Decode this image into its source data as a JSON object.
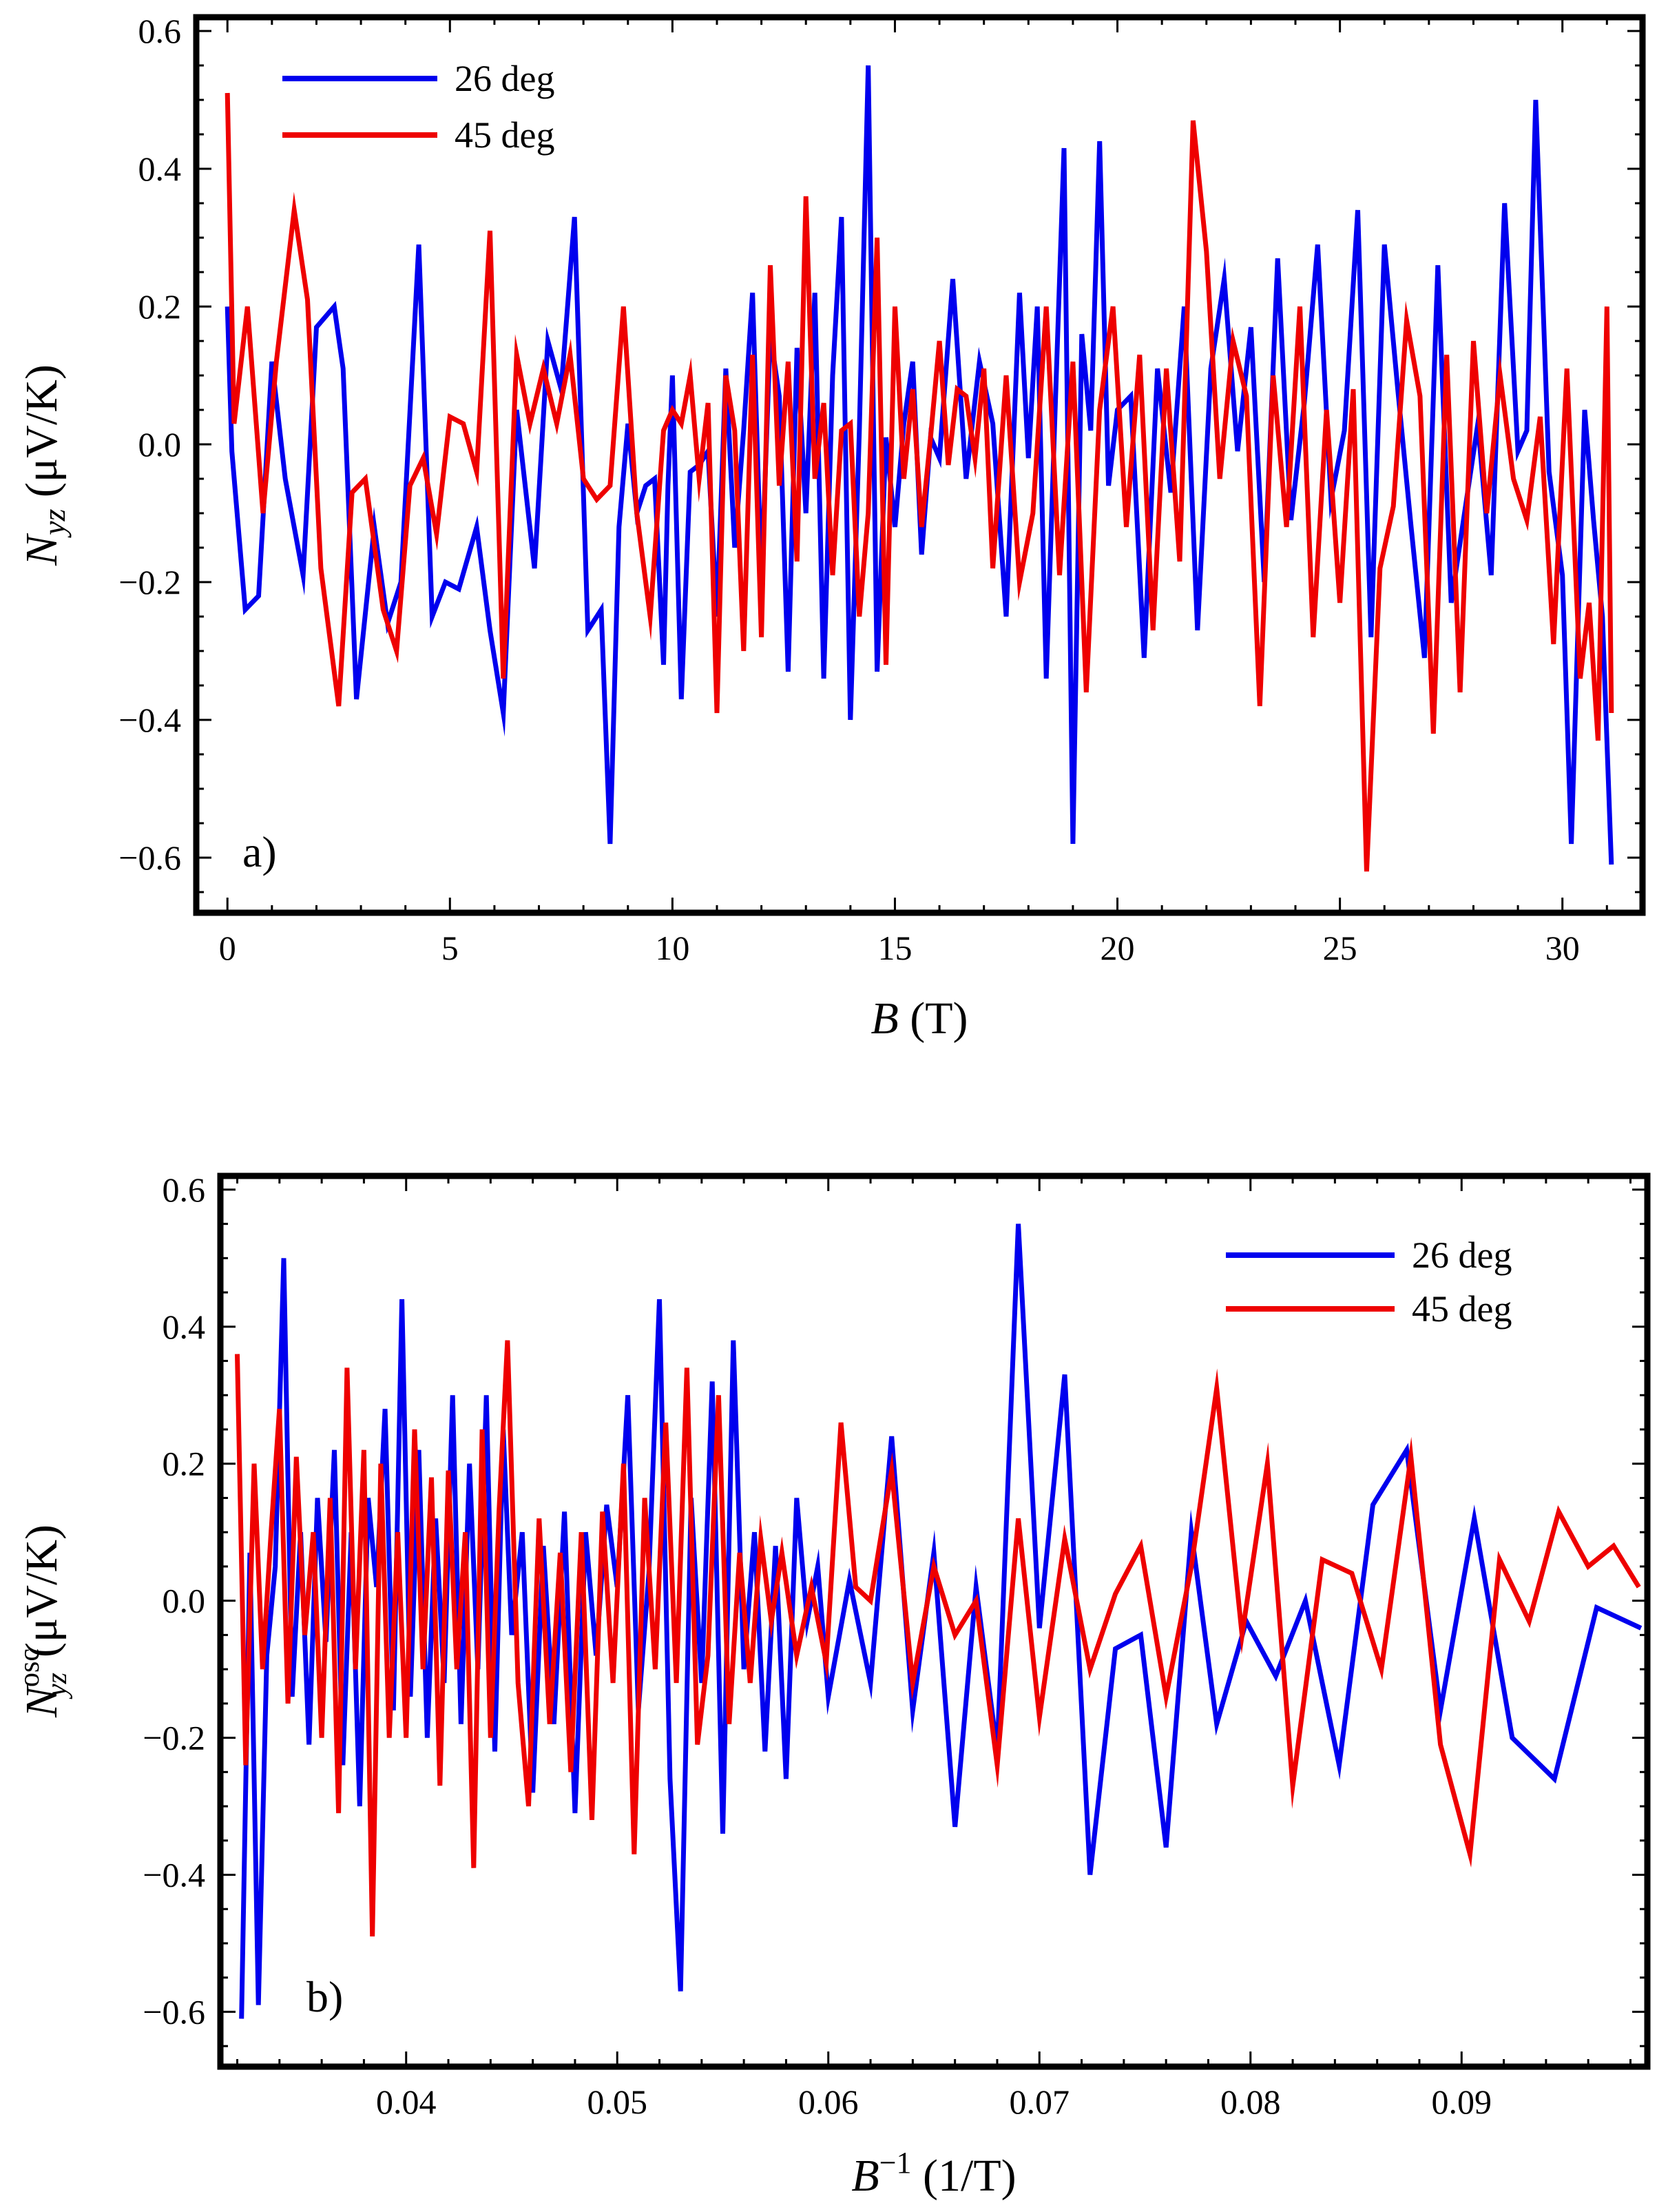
{
  "chart_data": [
    {
      "type": "line",
      "panel_label": "a)",
      "xlabel_main": "B",
      "xlabel_unit": " (T)",
      "ylabel_main": "N",
      "ylabel_sub": "yz",
      "ylabel_unit": " (μV/K)",
      "xlim": [
        -0.7,
        31.8
      ],
      "ylim": [
        -0.68,
        0.62
      ],
      "xticks": [
        0,
        5,
        10,
        15,
        20,
        25,
        30
      ],
      "xtick_labels": [
        "0",
        "5",
        "10",
        "15",
        "20",
        "25",
        "30"
      ],
      "yticks": [
        -0.6,
        -0.4,
        -0.2,
        0.0,
        0.2,
        0.4,
        0.6
      ],
      "ytick_labels": [
        "−0.6",
        "−0.4",
        "−0.2",
        "0.0",
        "0.2",
        "0.4",
        "0.6"
      ],
      "legend_position": "top-left",
      "series": [
        {
          "name": "26 deg",
          "color": "#0000ee",
          "x": [
            0,
            0.1,
            0.4,
            0.7,
            1.0,
            1.3,
            1.7,
            2.0,
            2.4,
            2.6,
            2.9,
            3.3,
            3.6,
            3.9,
            4.3,
            4.6,
            4.9,
            5.2,
            5.6,
            5.9,
            6.2,
            6.5,
            6.9,
            7.2,
            7.5,
            7.8,
            8.1,
            8.4,
            8.6,
            8.8,
            9.0,
            9.2,
            9.4,
            9.6,
            9.8,
            9.9,
            10.0,
            10.2,
            10.4,
            10.6,
            10.8,
            11.0,
            11.2,
            11.4,
            11.6,
            11.8,
            12.0,
            12.2,
            12.4,
            12.6,
            12.8,
            13.0,
            13.2,
            13.4,
            13.6,
            13.8,
            14.0,
            14.2,
            14.4,
            14.6,
            14.8,
            15.0,
            15.2,
            15.4,
            15.6,
            15.8,
            16.0,
            16.3,
            16.6,
            16.9,
            17.2,
            17.5,
            17.8,
            18.0,
            18.2,
            18.4,
            18.6,
            18.8,
            19.0,
            19.2,
            19.4,
            19.6,
            19.8,
            20.0,
            20.3,
            20.6,
            20.9,
            21.2,
            21.5,
            21.8,
            22.1,
            22.4,
            22.7,
            23.0,
            23.3,
            23.6,
            23.9,
            24.2,
            24.5,
            24.8,
            25.1,
            25.4,
            25.7,
            26.0,
            26.3,
            26.6,
            26.9,
            27.2,
            27.5,
            27.8,
            28.1,
            28.4,
            28.7,
            29.0,
            29.2,
            29.4,
            29.7,
            30.0,
            30.2,
            30.5,
            30.7,
            30.9,
            31.1
          ],
          "y": [
            0.2,
            -0.01,
            -0.24,
            -0.22,
            0.12,
            -0.05,
            -0.19,
            0.17,
            0.2,
            0.11,
            -0.37,
            -0.12,
            -0.26,
            -0.2,
            0.29,
            -0.25,
            -0.2,
            -0.21,
            -0.12,
            -0.27,
            -0.39,
            0.05,
            -0.18,
            0.15,
            0.08,
            0.33,
            -0.27,
            -0.24,
            -0.58,
            -0.12,
            0.03,
            -0.1,
            -0.06,
            -0.05,
            -0.32,
            -0.06,
            0.1,
            -0.37,
            -0.04,
            -0.03,
            -0.01,
            -0.25,
            0.11,
            -0.15,
            0.02,
            0.22,
            -0.2,
            0.16,
            0.07,
            -0.33,
            0.14,
            -0.1,
            0.22,
            -0.34,
            0.1,
            0.33,
            -0.4,
            0.02,
            0.55,
            -0.33,
            0.01,
            -0.12,
            0.03,
            0.12,
            -0.16,
            0.01,
            -0.02,
            0.24,
            -0.05,
            0.12,
            0.03,
            -0.25,
            0.22,
            -0.02,
            0.2,
            -0.34,
            0.05,
            0.43,
            -0.58,
            0.16,
            0.02,
            0.44,
            -0.06,
            0.05,
            0.07,
            -0.31,
            0.11,
            -0.07,
            0.2,
            -0.27,
            0.11,
            0.24,
            -0.01,
            0.17,
            -0.2,
            0.27,
            -0.11,
            0.06,
            0.29,
            -0.08,
            0.02,
            0.34,
            -0.28,
            0.29,
            0.08,
            -0.12,
            -0.31,
            0.26,
            -0.23,
            -0.1,
            0.03,
            -0.19,
            0.35,
            -0.01,
            0.02,
            0.5,
            -0.04,
            -0.19,
            -0.58,
            0.05,
            -0.11,
            -0.25,
            -0.61
          ]
        },
        {
          "name": "45 deg",
          "color": "#ee0000",
          "x": [
            0,
            0.15,
            0.45,
            0.8,
            1.1,
            1.5,
            1.8,
            2.1,
            2.5,
            2.8,
            3.1,
            3.5,
            3.8,
            4.1,
            4.4,
            4.7,
            5.0,
            5.3,
            5.6,
            5.9,
            6.2,
            6.5,
            6.8,
            7.1,
            7.4,
            7.7,
            8.0,
            8.3,
            8.6,
            8.9,
            9.2,
            9.5,
            9.8,
            10.0,
            10.2,
            10.4,
            10.6,
            10.8,
            11.0,
            11.2,
            11.4,
            11.6,
            11.8,
            12.0,
            12.2,
            12.4,
            12.6,
            12.8,
            13.0,
            13.2,
            13.4,
            13.6,
            13.8,
            14.0,
            14.2,
            14.4,
            14.6,
            14.8,
            15.0,
            15.2,
            15.4,
            15.6,
            15.8,
            16.0,
            16.2,
            16.4,
            16.6,
            16.8,
            17.0,
            17.2,
            17.5,
            17.8,
            18.1,
            18.4,
            18.7,
            19.0,
            19.3,
            19.6,
            19.9,
            20.2,
            20.5,
            20.8,
            21.1,
            21.4,
            21.7,
            22.0,
            22.3,
            22.6,
            22.9,
            23.2,
            23.5,
            23.8,
            24.1,
            24.4,
            24.7,
            25.0,
            25.3,
            25.6,
            25.9,
            26.2,
            26.5,
            26.8,
            27.1,
            27.4,
            27.7,
            28.0,
            28.3,
            28.6,
            28.9,
            29.2,
            29.5,
            29.8,
            30.1,
            30.4,
            30.6,
            30.8,
            31.0,
            31.1
          ],
          "y": [
            0.51,
            0.03,
            0.2,
            -0.1,
            0.12,
            0.34,
            0.21,
            -0.18,
            -0.38,
            -0.07,
            -0.05,
            -0.24,
            -0.3,
            -0.06,
            -0.02,
            -0.13,
            0.04,
            0.03,
            -0.04,
            0.31,
            -0.34,
            0.13,
            0.03,
            0.11,
            0.03,
            0.13,
            -0.05,
            -0.08,
            -0.06,
            0.2,
            -0.1,
            -0.25,
            0.02,
            0.05,
            0.03,
            0.1,
            -0.05,
            0.06,
            -0.39,
            0.1,
            0.02,
            -0.3,
            0.13,
            -0.28,
            0.26,
            -0.06,
            0.12,
            -0.17,
            0.36,
            -0.05,
            0.06,
            -0.19,
            0.02,
            0.03,
            -0.25,
            -0.1,
            0.3,
            -0.32,
            0.2,
            -0.05,
            0.08,
            -0.12,
            0.01,
            0.15,
            -0.03,
            0.08,
            0.07,
            -0.02,
            0.11,
            -0.18,
            0.1,
            -0.2,
            -0.1,
            0.2,
            -0.19,
            0.12,
            -0.36,
            0.05,
            0.2,
            -0.12,
            0.13,
            -0.27,
            0.11,
            -0.17,
            0.47,
            0.28,
            -0.05,
            0.15,
            0.07,
            -0.38,
            0.1,
            -0.12,
            0.2,
            -0.28,
            0.05,
            -0.23,
            0.08,
            -0.62,
            -0.18,
            -0.09,
            0.18,
            0.07,
            -0.42,
            0.13,
            -0.36,
            0.15,
            -0.1,
            0.1,
            -0.05,
            -0.11,
            0.04,
            -0.29,
            0.11,
            -0.34,
            -0.23,
            -0.43,
            0.2,
            -0.39
          ]
        }
      ]
    },
    {
      "type": "line",
      "panel_label": "b)",
      "xlabel_main": "B",
      "xlabel_sup": "−1",
      "xlabel_unit": " (1/T)",
      "ylabel_main": "N",
      "ylabel_sub": "yz",
      "ylabel_sup": "osc",
      "ylabel_unit": "(μV/K)",
      "xlim": [
        0.0312,
        0.0988
      ],
      "ylim": [
        -0.68,
        0.62
      ],
      "xticks": [
        0.04,
        0.05,
        0.06,
        0.07,
        0.08,
        0.09
      ],
      "xtick_labels": [
        "0.04",
        "0.05",
        "0.06",
        "0.07",
        "0.08",
        "0.09"
      ],
      "yticks": [
        -0.6,
        -0.4,
        -0.2,
        0.0,
        0.2,
        0.4,
        0.6
      ],
      "ytick_labels": [
        "−0.6",
        "−0.4",
        "−0.2",
        "0.0",
        "0.2",
        "0.4",
        "0.6"
      ],
      "legend_position": "top-right",
      "series": [
        {
          "name": "26 deg",
          "color": "#0000ee",
          "x": [
            0.0322,
            0.0326,
            0.033,
            0.0334,
            0.0338,
            0.0342,
            0.0346,
            0.035,
            0.0354,
            0.0358,
            0.0362,
            0.0366,
            0.037,
            0.0374,
            0.0378,
            0.0382,
            0.0386,
            0.039,
            0.0394,
            0.0398,
            0.0402,
            0.0406,
            0.041,
            0.0414,
            0.0418,
            0.0422,
            0.0426,
            0.043,
            0.0434,
            0.0438,
            0.0442,
            0.0446,
            0.045,
            0.0455,
            0.046,
            0.0465,
            0.047,
            0.0475,
            0.048,
            0.0485,
            0.049,
            0.0495,
            0.05,
            0.0505,
            0.051,
            0.0515,
            0.052,
            0.0525,
            0.053,
            0.0535,
            0.054,
            0.0545,
            0.055,
            0.0555,
            0.056,
            0.0565,
            0.057,
            0.0575,
            0.058,
            0.0585,
            0.059,
            0.0595,
            0.06,
            0.061,
            0.062,
            0.063,
            0.064,
            0.065,
            0.066,
            0.067,
            0.068,
            0.069,
            0.07,
            0.0712,
            0.0724,
            0.0736,
            0.0748,
            0.076,
            0.0772,
            0.0784,
            0.0798,
            0.0812,
            0.0826,
            0.0842,
            0.0858,
            0.0874,
            0.089,
            0.0906,
            0.0924,
            0.0944,
            0.0964,
            0.0985
          ],
          "y": [
            -0.61,
            0.07,
            -0.59,
            -0.08,
            0.05,
            0.5,
            -0.14,
            0.1,
            -0.21,
            0.15,
            -0.06,
            0.22,
            -0.24,
            0.1,
            -0.3,
            0.15,
            0.02,
            0.28,
            -0.16,
            0.44,
            -0.14,
            0.22,
            -0.2,
            0.12,
            -0.12,
            0.3,
            -0.18,
            0.2,
            -0.1,
            0.3,
            -0.22,
            0.25,
            -0.05,
            0.1,
            -0.28,
            0.08,
            -0.18,
            0.13,
            -0.31,
            0.1,
            -0.08,
            0.14,
            0.02,
            0.3,
            -0.16,
            0.04,
            0.44,
            -0.26,
            -0.57,
            0.15,
            -0.12,
            0.32,
            -0.34,
            0.38,
            -0.1,
            0.1,
            -0.22,
            0.08,
            -0.26,
            0.15,
            -0.03,
            0.05,
            -0.14,
            0.03,
            -0.12,
            0.24,
            -0.16,
            0.07,
            -0.33,
            0.02,
            -0.22,
            0.55,
            -0.04,
            0.33,
            -0.4,
            -0.07,
            -0.05,
            -0.36,
            0.1,
            -0.18,
            -0.03,
            -0.11,
            0.0,
            -0.24,
            0.14,
            0.22,
            -0.16,
            0.12,
            -0.2,
            -0.26,
            -0.01,
            -0.04
          ]
        },
        {
          "name": "45 deg",
          "color": "#ee0000",
          "x": [
            0.032,
            0.0324,
            0.0328,
            0.0332,
            0.0336,
            0.034,
            0.0344,
            0.0348,
            0.0352,
            0.0356,
            0.036,
            0.0364,
            0.0368,
            0.0372,
            0.0376,
            0.038,
            0.0384,
            0.0388,
            0.0392,
            0.0396,
            0.04,
            0.0404,
            0.0408,
            0.0412,
            0.0416,
            0.042,
            0.0424,
            0.0428,
            0.0432,
            0.0436,
            0.044,
            0.0444,
            0.0448,
            0.0453,
            0.0458,
            0.0463,
            0.0468,
            0.0473,
            0.0478,
            0.0483,
            0.0488,
            0.0493,
            0.0498,
            0.0503,
            0.0508,
            0.0513,
            0.0518,
            0.0523,
            0.0528,
            0.0533,
            0.0538,
            0.0543,
            0.0548,
            0.0553,
            0.0558,
            0.0563,
            0.0568,
            0.0573,
            0.0578,
            0.0585,
            0.0592,
            0.0599,
            0.0606,
            0.0613,
            0.062,
            0.063,
            0.064,
            0.065,
            0.066,
            0.067,
            0.068,
            0.069,
            0.07,
            0.0712,
            0.0724,
            0.0736,
            0.0748,
            0.076,
            0.0772,
            0.0784,
            0.0796,
            0.0808,
            0.082,
            0.0834,
            0.0848,
            0.0862,
            0.0876,
            0.089,
            0.0904,
            0.0918,
            0.0932,
            0.0946,
            0.096,
            0.0972,
            0.0984
          ],
          "y": [
            0.36,
            -0.24,
            0.2,
            -0.1,
            0.1,
            0.28,
            -0.15,
            0.21,
            -0.05,
            0.1,
            -0.2,
            0.15,
            -0.31,
            0.34,
            -0.1,
            0.22,
            -0.49,
            0.2,
            -0.2,
            0.1,
            -0.2,
            0.25,
            -0.1,
            0.18,
            -0.27,
            0.19,
            -0.1,
            0.1,
            -0.39,
            0.25,
            -0.2,
            0.13,
            0.38,
            -0.12,
            -0.3,
            0.12,
            -0.18,
            0.07,
            -0.25,
            0.1,
            -0.32,
            0.13,
            -0.12,
            0.2,
            -0.37,
            0.15,
            -0.1,
            0.26,
            -0.12,
            0.34,
            -0.21,
            -0.08,
            0.3,
            -0.18,
            0.07,
            -0.12,
            0.09,
            -0.03,
            0.07,
            -0.08,
            0.02,
            -0.09,
            0.26,
            0.02,
            0.0,
            0.19,
            -0.12,
            0.05,
            -0.05,
            0.0,
            -0.24,
            0.12,
            -0.17,
            0.09,
            -0.1,
            0.01,
            0.08,
            -0.14,
            0.05,
            0.31,
            -0.05,
            0.2,
            -0.27,
            0.06,
            0.04,
            -0.1,
            0.21,
            -0.21,
            -0.37,
            0.06,
            -0.03,
            0.13,
            0.05,
            0.08,
            0.02
          ]
        }
      ]
    }
  ]
}
